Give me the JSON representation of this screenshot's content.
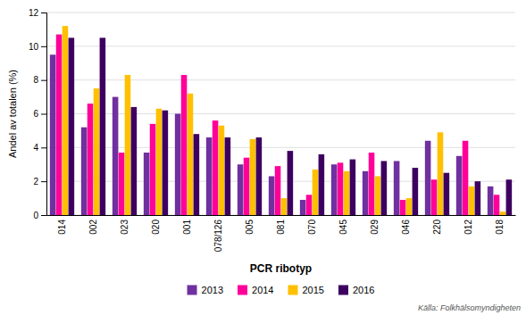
{
  "chart_data": {
    "type": "bar",
    "xlabel": "PCR ribotyp",
    "ylabel": "Andel av totalen (%)",
    "annotations": [
      "Källa: Folkhälsomyndigheten"
    ],
    "categories": [
      "014",
      "002",
      "023",
      "020",
      "001",
      "078/126",
      "005",
      "081",
      "070",
      "045",
      "029",
      "046",
      "220",
      "012",
      "018"
    ],
    "series": [
      {
        "name": "2013",
        "color": "#7030a0",
        "values": [
          9.5,
          5.2,
          7.0,
          3.7,
          6.0,
          4.6,
          3.0,
          2.3,
          0.9,
          3.0,
          2.6,
          3.2,
          4.4,
          3.5,
          1.7
        ]
      },
      {
        "name": "2014",
        "color": "#ff0099",
        "values": [
          10.7,
          6.6,
          3.7,
          5.4,
          8.3,
          5.6,
          3.4,
          2.9,
          1.2,
          3.1,
          3.7,
          0.9,
          2.1,
          4.4,
          1.2
        ]
      },
      {
        "name": "2015",
        "color": "#ffc000",
        "values": [
          11.2,
          7.5,
          8.3,
          6.3,
          7.2,
          5.3,
          4.5,
          1.0,
          2.7,
          2.6,
          2.3,
          1.0,
          4.9,
          1.7,
          0.2
        ]
      },
      {
        "name": "2016",
        "color": "#3d0060",
        "values": [
          10.5,
          10.5,
          6.4,
          6.2,
          4.8,
          4.6,
          4.6,
          3.8,
          3.6,
          3.3,
          3.2,
          2.8,
          2.5,
          2.0,
          2.1
        ]
      }
    ],
    "ylim": [
      0,
      12
    ],
    "yticks": [
      0,
      2,
      4,
      6,
      8,
      10,
      12
    ],
    "grid": true,
    "legend": "bottom"
  }
}
